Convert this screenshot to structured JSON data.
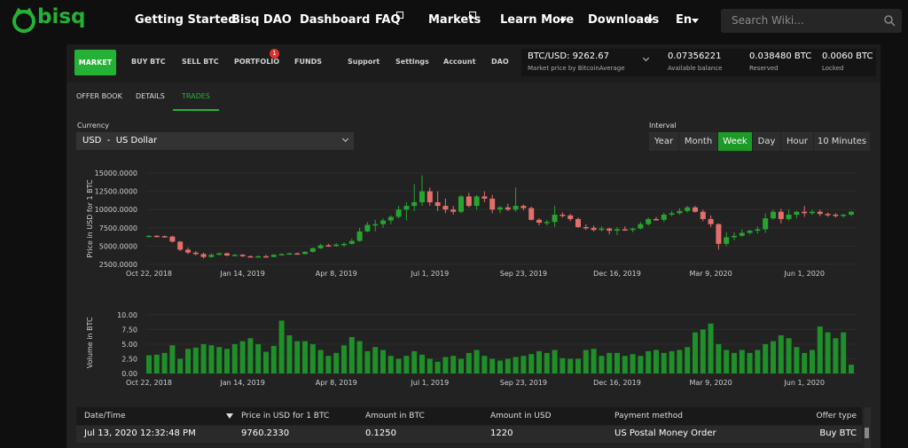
{
  "header": {
    "logo": "bisq",
    "nav": [
      "Getting Started",
      "Bisq DAO",
      "Dashboard",
      "FAQ",
      "Markets",
      "Learn More",
      "Downloads",
      "En"
    ],
    "search_placeholder": "Search Wiki..."
  },
  "app": {
    "tabs": [
      "MARKET",
      "BUY BTC",
      "SELL BTC",
      "PORTFOLIO",
      "FUNDS"
    ],
    "portfolio_badge": "1",
    "menu": [
      "Support",
      "Settings",
      "Account",
      "DAO"
    ],
    "price": {
      "value": "BTC/USD: 9262.67",
      "source": "Market price by BitcoinAverage"
    },
    "balances": [
      {
        "value": "0.07356221",
        "label": "Available balance"
      },
      {
        "value": "0.038480 BTC",
        "label": "Reserved"
      },
      {
        "value": "0.0060 BTC",
        "label": "Locked"
      }
    ],
    "subtabs": [
      "OFFER BOOK",
      "DETAILS",
      "TRADES"
    ],
    "active_subtab": 2,
    "currency_label": "Currency",
    "currency": "USD  -  US Dollar",
    "interval_label": "Interval",
    "intervals": [
      "Year",
      "Month",
      "Week",
      "Day",
      "Hour",
      "10 Minutes"
    ],
    "active_interval": 2
  },
  "chart_data": [
    {
      "type": "candlestick",
      "y_label": "Price in USD for 1 BTC",
      "categories": [
        "Oct 22, 2018",
        null,
        null,
        null,
        null,
        null,
        null,
        null,
        null,
        null,
        null,
        null,
        "Jan 14, 2019",
        null,
        null,
        null,
        null,
        null,
        null,
        null,
        null,
        null,
        null,
        null,
        "Apr 8, 2019",
        null,
        null,
        null,
        null,
        null,
        null,
        null,
        null,
        null,
        null,
        null,
        "Jul 1, 2019",
        null,
        null,
        null,
        null,
        null,
        null,
        null,
        null,
        null,
        null,
        null,
        "Sep 23, 2019",
        null,
        null,
        null,
        null,
        null,
        null,
        null,
        null,
        null,
        null,
        null,
        "Dec 16, 2019",
        null,
        null,
        null,
        null,
        null,
        null,
        null,
        null,
        null,
        null,
        null,
        "Mar 9, 2020",
        null,
        null,
        null,
        null,
        null,
        null,
        null,
        null,
        null,
        null,
        null,
        "Jun 1, 2020",
        null,
        null,
        null,
        null,
        null,
        null
      ],
      "values": [
        [
          6400,
          6500,
          6300,
          6400
        ],
        [
          6400,
          6500,
          6350,
          6350
        ],
        [
          6350,
          6450,
          6200,
          6300
        ],
        [
          6300,
          6400,
          5500,
          5600
        ],
        [
          5600,
          5700,
          4300,
          4500
        ],
        [
          4500,
          4800,
          3900,
          4100
        ],
        [
          4100,
          4300,
          3700,
          3900
        ],
        [
          3900,
          4100,
          3300,
          3500
        ],
        [
          3500,
          4000,
          3400,
          3800
        ],
        [
          3800,
          4100,
          3700,
          4000
        ],
        [
          4000,
          4100,
          3600,
          3700
        ],
        [
          3700,
          3900,
          3600,
          3800
        ],
        [
          3800,
          3900,
          3500,
          3600
        ],
        [
          3600,
          3700,
          3450,
          3550
        ],
        [
          3550,
          3700,
          3500,
          3600
        ],
        [
          3600,
          3800,
          3450,
          3500
        ],
        [
          3500,
          3900,
          3450,
          3800
        ],
        [
          3800,
          4000,
          3700,
          3900
        ],
        [
          3900,
          4100,
          3800,
          4000
        ],
        [
          4000,
          4100,
          3800,
          3900
        ],
        [
          3900,
          4300,
          3850,
          4200
        ],
        [
          4200,
          4800,
          4100,
          4700
        ],
        [
          4700,
          5300,
          4600,
          5100
        ],
        [
          5100,
          5300,
          4900,
          5000
        ],
        [
          5000,
          5400,
          4900,
          5200
        ],
        [
          5200,
          5500,
          4900,
          5300
        ],
        [
          5300,
          6000,
          5200,
          5700
        ],
        [
          5700,
          7500,
          5600,
          7000
        ],
        [
          7000,
          8300,
          6900,
          7900
        ],
        [
          7900,
          8600,
          7000,
          8000
        ],
        [
          8000,
          8800,
          7500,
          8500
        ],
        [
          8500,
          9200,
          8000,
          9000
        ],
        [
          9000,
          10500,
          8800,
          10000
        ],
        [
          10000,
          11000,
          8500,
          10500
        ],
        [
          10500,
          13500,
          9800,
          11000
        ],
        [
          11000,
          14700,
          10500,
          12500
        ],
        [
          12500,
          13000,
          10500,
          11000
        ],
        [
          11000,
          12500,
          9800,
          10500
        ],
        [
          10500,
          11500,
          9500,
          10000
        ],
        [
          10000,
          10500,
          9300,
          9700
        ],
        [
          9700,
          12000,
          9500,
          11800
        ],
        [
          11800,
          12300,
          10300,
          10500
        ],
        [
          10500,
          12000,
          10000,
          11800
        ],
        [
          11800,
          12500,
          11000,
          11500
        ],
        [
          11500,
          12000,
          9500,
          10000
        ],
        [
          10000,
          10500,
          9500,
          10300
        ],
        [
          10300,
          10800,
          9800,
          10000
        ],
        [
          10000,
          13000,
          9700,
          10500
        ],
        [
          10500,
          10700,
          9900,
          10200
        ],
        [
          10200,
          10400,
          8500,
          8600
        ],
        [
          8600,
          8800,
          7800,
          8200
        ],
        [
          8200,
          8600,
          7800,
          8300
        ],
        [
          8300,
          10500,
          7600,
          9300
        ],
        [
          9300,
          9600,
          8900,
          9200
        ],
        [
          9200,
          9400,
          8400,
          8700
        ],
        [
          8700,
          8900,
          7500,
          7600
        ],
        [
          7600,
          8000,
          7200,
          7500
        ],
        [
          7500,
          7800,
          7000,
          7200
        ],
        [
          7200,
          7700,
          7000,
          7400
        ],
        [
          7400,
          7500,
          6600,
          7100
        ],
        [
          7100,
          7600,
          6500,
          7300
        ],
        [
          7300,
          7700,
          7100,
          7200
        ],
        [
          7200,
          7500,
          6900,
          7400
        ],
        [
          7400,
          8300,
          7300,
          8000
        ],
        [
          8000,
          8900,
          7800,
          8700
        ],
        [
          8700,
          9000,
          8500,
          8600
        ],
        [
          8600,
          9600,
          8300,
          9300
        ],
        [
          9300,
          9800,
          9100,
          9500
        ],
        [
          9500,
          10200,
          9300,
          9800
        ],
        [
          9800,
          10500,
          9600,
          10300
        ],
        [
          10300,
          10500,
          9600,
          9700
        ],
        [
          9700,
          10000,
          8400,
          8700
        ],
        [
          8700,
          9200,
          7600,
          8000
        ],
        [
          8000,
          8100,
          4500,
          5300
        ],
        [
          5300,
          6900,
          5000,
          6200
        ],
        [
          6200,
          6900,
          5800,
          6400
        ],
        [
          6400,
          7300,
          6300,
          6800
        ],
        [
          6800,
          7200,
          6600,
          7100
        ],
        [
          7100,
          7700,
          6700,
          7300
        ],
        [
          7300,
          9500,
          6800,
          8800
        ],
        [
          8800,
          10000,
          8600,
          9700
        ],
        [
          9700,
          10100,
          8100,
          8700
        ],
        [
          8700,
          10000,
          8500,
          9300
        ],
        [
          9300,
          9800,
          8800,
          9700
        ],
        [
          9700,
          10500,
          9000,
          9500
        ],
        [
          9500,
          10000,
          9300,
          9700
        ],
        [
          9700,
          10000,
          9100,
          9400
        ],
        [
          9400,
          9600,
          9000,
          9300
        ],
        [
          9300,
          9500,
          8900,
          9200
        ],
        [
          9200,
          9400,
          8900,
          9300
        ],
        [
          9300,
          9800,
          9100,
          9700
        ]
      ],
      "up_color": "#25a52f",
      "down_color": "#e36f6c",
      "ylim": [
        2000,
        15500
      ],
      "yticks": [
        {
          "value": 2500,
          "label": "2500.0000"
        },
        {
          "value": 5000,
          "label": "5000.0000"
        },
        {
          "value": 7500,
          "label": "7500.0000"
        },
        {
          "value": 10000,
          "label": "10000.0000"
        },
        {
          "value": 12500,
          "label": "12500.0000"
        },
        {
          "value": 15000,
          "label": "15000.0000"
        }
      ],
      "grid": true
    },
    {
      "type": "bar",
      "y_label": "Volume in BTC",
      "categories": [
        "Oct 22, 2018",
        null,
        null,
        null,
        null,
        null,
        null,
        null,
        null,
        null,
        null,
        null,
        "Jan 14, 2019",
        null,
        null,
        null,
        null,
        null,
        null,
        null,
        null,
        null,
        null,
        null,
        "Apr 8, 2019",
        null,
        null,
        null,
        null,
        null,
        null,
        null,
        null,
        null,
        null,
        null,
        "Jul 1, 2019",
        null,
        null,
        null,
        null,
        null,
        null,
        null,
        null,
        null,
        null,
        null,
        "Sep 23, 2019",
        null,
        null,
        null,
        null,
        null,
        null,
        null,
        null,
        null,
        null,
        null,
        "Dec 16, 2019",
        null,
        null,
        null,
        null,
        null,
        null,
        null,
        null,
        null,
        null,
        null,
        "Mar 9, 2020",
        null,
        null,
        null,
        null,
        null,
        null,
        null,
        null,
        null,
        null,
        null,
        "Jun 1, 2020",
        null,
        null,
        null,
        null,
        null,
        null
      ],
      "values": [
        3.1,
        3.2,
        3.5,
        4.8,
        2.5,
        4.2,
        4.4,
        5.0,
        4.8,
        4.5,
        4.2,
        5.0,
        5.5,
        6.0,
        5.0,
        3.7,
        4.7,
        9.0,
        6.5,
        5.5,
        5.5,
        5.0,
        4.0,
        3.0,
        3.5,
        4.8,
        6.2,
        5.5,
        3.8,
        4.5,
        4.0,
        3.0,
        2.5,
        3.0,
        3.8,
        3.2,
        2.5,
        2.0,
        2.8,
        3.0,
        2.5,
        3.5,
        4.0,
        3.0,
        2.5,
        2.2,
        2.5,
        2.8,
        3.0,
        3.3,
        3.8,
        3.5,
        4.0,
        2.6,
        2.5,
        2.5,
        4.0,
        4.2,
        3.0,
        3.5,
        3.5,
        3.0,
        3.3,
        3.0,
        3.8,
        4.0,
        3.5,
        3.8,
        4.0,
        4.5,
        7.0,
        7.5,
        8.5,
        5.0,
        4.0,
        3.5,
        4.0,
        3.5,
        4.0,
        5.0,
        5.5,
        6.5,
        6.0,
        4.5,
        3.5,
        4.0,
        8.0,
        7.0,
        6.0,
        7.0,
        1.5
      ],
      "color": "#1e8f29",
      "ylim": [
        0,
        10.5
      ],
      "yticks": [
        {
          "value": 0,
          "label": "0.00"
        },
        {
          "value": 2.5,
          "label": "2.50"
        },
        {
          "value": 5,
          "label": "5.00"
        },
        {
          "value": 7.5,
          "label": "7.50"
        },
        {
          "value": 10,
          "label": "10.00"
        }
      ],
      "grid": true
    }
  ],
  "table": {
    "columns": [
      "Date/Time",
      "Price in USD for 1 BTC",
      "Amount in BTC",
      "Amount in USD",
      "Payment method",
      "Offer type"
    ],
    "rows": [
      [
        "Jul 13, 2020 12:32:48 PM",
        "9760.2330",
        "0.1250",
        "1220",
        "US Postal Money Order",
        "Buy BTC"
      ]
    ]
  }
}
